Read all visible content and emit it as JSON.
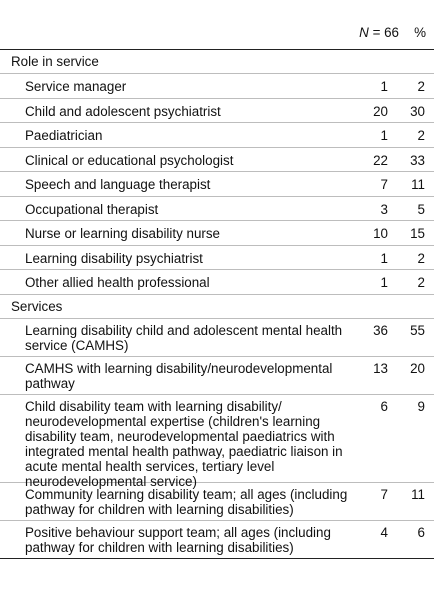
{
  "header": {
    "n_label": "N",
    "n_value": " = 66",
    "pct_label": "%"
  },
  "sections": [
    {
      "title": "Role in service",
      "rows": [
        {
          "label": "Service manager",
          "n": "1",
          "pct": "2"
        },
        {
          "label": "Child and adolescent psychiatrist",
          "n": "20",
          "pct": "30"
        },
        {
          "label": "Paediatrician",
          "n": "1",
          "pct": "2"
        },
        {
          "label": "Clinical or educational psychologist",
          "n": "22",
          "pct": "33"
        },
        {
          "label": "Speech and language therapist",
          "n": "7",
          "pct": "11"
        },
        {
          "label": "Occupational therapist",
          "n": "3",
          "pct": "5"
        },
        {
          "label": "Nurse or learning disability nurse",
          "n": "10",
          "pct": "15"
        },
        {
          "label": "Learning disability psychiatrist",
          "n": "1",
          "pct": "2"
        },
        {
          "label": "Other allied health professional",
          "n": "1",
          "pct": "2"
        }
      ]
    },
    {
      "title": "Services",
      "rows": [
        {
          "label": "Learning disability child and adolescent mental health service (CAMHS)",
          "n": "36",
          "pct": "55"
        },
        {
          "label": "CAMHS with learning disability/neurodevelopmental pathway",
          "n": "13",
          "pct": "20"
        },
        {
          "label": "Child disability team with learning disability/ neurodevelopmental expertise (children's learning disability team, neurodevelopmental paediatrics with integrated mental health pathway, paediatric liaison in acute mental health services, tertiary level neurodevelopmental service)",
          "n": "6",
          "pct": "9"
        },
        {
          "label": "Community learning disability team; all ages (including pathway for children with learning disabilities)",
          "n": "7",
          "pct": "11"
        },
        {
          "label": "Positive behaviour support team; all ages (including pathway for children with learning disabilities)",
          "n": "4",
          "pct": "6"
        }
      ]
    }
  ]
}
